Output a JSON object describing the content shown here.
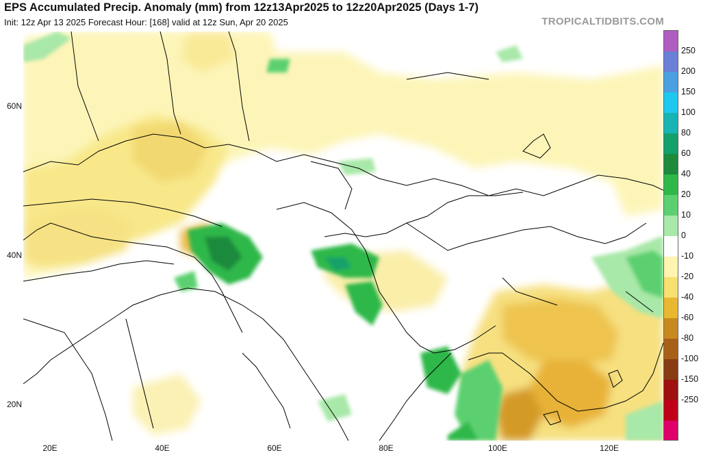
{
  "title": "EPS Accumulated Precip. Anomaly (mm) from 12z13Apr2025 to 12z20Apr2025 (Days 1-7)",
  "subtitle": "Init: 12z Apr 13 2025   Forecast Hour: [168]   valid at 12z Sun, Apr 20 2025",
  "brand": "TROPICALTIDBITS.COM",
  "lat_labels": [
    "60N",
    "40N",
    "20N"
  ],
  "lon_labels": [
    "20E",
    "40E",
    "60E",
    "80E",
    "100E",
    "120E"
  ],
  "colorbar": {
    "labels": [
      "250",
      "200",
      "150",
      "100",
      "80",
      "60",
      "40",
      "20",
      "10",
      "0",
      "-10",
      "-20",
      "-40",
      "-60",
      "-80",
      "-100",
      "-150",
      "-250"
    ],
    "colors": [
      "#b05cc0",
      "#6a7fd6",
      "#4aa0e0",
      "#1ec8f0",
      "#18b4b4",
      "#14a06a",
      "#1e8a3c",
      "#2fb84a",
      "#5cd070",
      "#a8e8a8",
      "#ffffff",
      "#fff4b0",
      "#f6e070",
      "#e8b830",
      "#c88a20",
      "#a86018",
      "#883c12",
      "#a01010",
      "#c00018",
      "#e0006a"
    ]
  }
}
